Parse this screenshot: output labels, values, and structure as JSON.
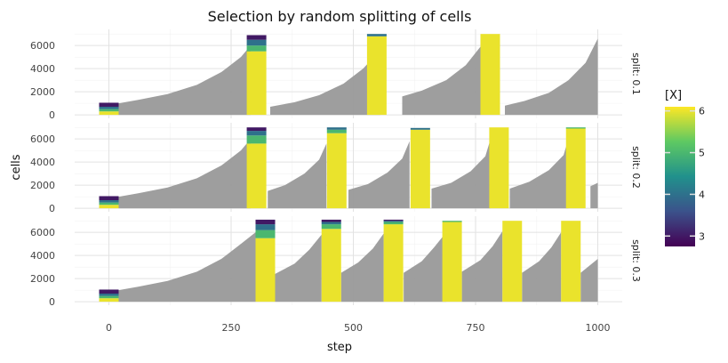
{
  "chart_data": {
    "type": "area",
    "title": "Selection by random splitting of cells",
    "xlabel": "step",
    "ylabel": "cells",
    "xlim": [
      -70,
      1050
    ],
    "ylim": [
      -300,
      7400
    ],
    "x_ticks": [
      0,
      250,
      500,
      750,
      1000
    ],
    "y_ticks": [
      0,
      2000,
      4000,
      6000
    ],
    "x_tick_labels": [
      "0",
      "250",
      "500",
      "750",
      "1000"
    ],
    "y_tick_labels": [
      "0",
      "2000",
      "4000",
      "6000"
    ],
    "area_color": "#999999",
    "bar_width": 40,
    "grid": true,
    "legend": {
      "title": "[X]",
      "position": "right",
      "range": [
        2.75,
        6.1
      ],
      "ticks": [
        3,
        4,
        5,
        6
      ],
      "tick_labels": [
        "3",
        "4",
        "5",
        "6"
      ],
      "colors": [
        "#440154",
        "#3b528b",
        "#21918c",
        "#5ec962",
        "#fde725"
      ]
    },
    "panels": [
      {
        "label": "split: 0.1",
        "area": [
          {
            "x": [
              20,
              60,
              120,
              180,
              230,
              270,
              290
            ],
            "y": [
              1000,
              1300,
              1800,
              2600,
              3700,
              5000,
              6000
            ]
          },
          {
            "x": [
              330,
              380,
              430,
              480,
              520,
              555
            ],
            "y": [
              700,
              1100,
              1700,
              2700,
              4000,
              5600
            ]
          },
          {
            "x": [
              600,
              640,
              690,
              730,
              760
            ],
            "y": [
              1600,
              2100,
              3000,
              4300,
              5900
            ]
          },
          {
            "x": [
              810,
              850,
              900,
              940,
              975,
              1000
            ],
            "y": [
              800,
              1200,
              1900,
              3000,
              4500,
              6600
            ]
          }
        ],
        "bars": [
          {
            "x": 0,
            "segments": [
              {
                "value": 6,
                "height": 300
              },
              {
                "value": 5,
                "height": 200
              },
              {
                "value": 4,
                "height": 200
              },
              {
                "value": 3,
                "height": 350
              }
            ]
          },
          {
            "x": 302,
            "segments": [
              {
                "value": 6,
                "height": 5500
              },
              {
                "value": 5,
                "height": 500
              },
              {
                "value": 4,
                "height": 500
              },
              {
                "value": 3,
                "height": 400
              }
            ]
          },
          {
            "x": 548,
            "segments": [
              {
                "value": 6,
                "height": 6800
              },
              {
                "value": 4,
                "height": 200
              }
            ]
          },
          {
            "x": 780,
            "segments": [
              {
                "value": 6,
                "height": 7000
              }
            ]
          }
        ]
      },
      {
        "label": "split: 0.2",
        "area": [
          {
            "x": [
              20,
              60,
              120,
              180,
              230,
              270,
              290
            ],
            "y": [
              1000,
              1300,
              1800,
              2600,
              3700,
              5000,
              6000
            ]
          },
          {
            "x": [
              325,
              360,
              400,
              430,
              445
            ],
            "y": [
              1500,
              2000,
              3000,
              4200,
              5600
            ]
          },
          {
            "x": [
              490,
              530,
              570,
              600,
              615
            ],
            "y": [
              1600,
              2100,
              3100,
              4300,
              5800
            ]
          },
          {
            "x": [
              660,
              700,
              740,
              770,
              780
            ],
            "y": [
              1700,
              2200,
              3200,
              4500,
              5900
            ]
          },
          {
            "x": [
              820,
              860,
              900,
              930,
              940
            ],
            "y": [
              1700,
              2300,
              3300,
              4600,
              6000
            ]
          },
          {
            "x": [
              985,
              1000
            ],
            "y": [
              1900,
              2200
            ]
          }
        ],
        "bars": [
          {
            "x": 0,
            "segments": [
              {
                "value": 6,
                "height": 300
              },
              {
                "value": 5,
                "height": 200
              },
              {
                "value": 4,
                "height": 200
              },
              {
                "value": 3,
                "height": 350
              }
            ]
          },
          {
            "x": 302,
            "segments": [
              {
                "value": 6,
                "height": 5600
              },
              {
                "value": 5,
                "height": 700
              },
              {
                "value": 4,
                "height": 400
              },
              {
                "value": 3,
                "height": 300
              }
            ]
          },
          {
            "x": 466,
            "segments": [
              {
                "value": 6,
                "height": 6500
              },
              {
                "value": 5,
                "height": 300
              },
              {
                "value": 4,
                "height": 200
              }
            ]
          },
          {
            "x": 637,
            "segments": [
              {
                "value": 6,
                "height": 6800
              },
              {
                "value": 4,
                "height": 150
              }
            ]
          },
          {
            "x": 798,
            "segments": [
              {
                "value": 6,
                "height": 7000
              }
            ]
          },
          {
            "x": 955,
            "segments": [
              {
                "value": 6,
                "height": 6900
              },
              {
                "value": 5,
                "height": 100
              }
            ]
          }
        ]
      },
      {
        "label": "split: 0.3",
        "area": [
          {
            "x": [
              20,
              60,
              120,
              180,
              230,
              270,
              300
            ],
            "y": [
              1000,
              1300,
              1800,
              2600,
              3700,
              5000,
              6000
            ]
          },
          {
            "x": [
              340,
              380,
              410,
              435
            ],
            "y": [
              2400,
              3300,
              4500,
              5800
            ]
          },
          {
            "x": [
              475,
              510,
              540,
              562
            ],
            "y": [
              2500,
              3400,
              4600,
              5900
            ]
          },
          {
            "x": [
              603,
              640,
              665,
              690
            ],
            "y": [
              2500,
              3500,
              4700,
              6000
            ]
          },
          {
            "x": [
              722,
              760,
              785,
              805
            ],
            "y": [
              2600,
              3600,
              4800,
              6100
            ]
          },
          {
            "x": [
              845,
              880,
              905,
              925
            ],
            "y": [
              2500,
              3500,
              4700,
              6000
            ]
          },
          {
            "x": [
              965,
              1000
            ],
            "y": [
              2500,
              3700
            ]
          }
        ],
        "bars": [
          {
            "x": 0,
            "segments": [
              {
                "value": 6,
                "height": 300
              },
              {
                "value": 5,
                "height": 200
              },
              {
                "value": 4,
                "height": 200
              },
              {
                "value": 3,
                "height": 350
              }
            ]
          },
          {
            "x": 320,
            "segments": [
              {
                "value": 6,
                "height": 5500
              },
              {
                "value": 5,
                "height": 700
              },
              {
                "value": 4,
                "height": 500
              },
              {
                "value": 3,
                "height": 400
              }
            ]
          },
          {
            "x": 455,
            "segments": [
              {
                "value": 6,
                "height": 6300
              },
              {
                "value": 5,
                "height": 400
              },
              {
                "value": 4,
                "height": 200
              },
              {
                "value": 3,
                "height": 200
              }
            ]
          },
          {
            "x": 582,
            "segments": [
              {
                "value": 6,
                "height": 6700
              },
              {
                "value": 5,
                "height": 200
              },
              {
                "value": 4,
                "height": 100
              },
              {
                "value": 3,
                "height": 100
              }
            ]
          },
          {
            "x": 702,
            "segments": [
              {
                "value": 6,
                "height": 6900
              },
              {
                "value": 5,
                "height": 100
              }
            ]
          },
          {
            "x": 825,
            "segments": [
              {
                "value": 6,
                "height": 7000
              }
            ]
          },
          {
            "x": 945,
            "segments": [
              {
                "value": 6,
                "height": 7000
              }
            ]
          }
        ]
      }
    ]
  }
}
